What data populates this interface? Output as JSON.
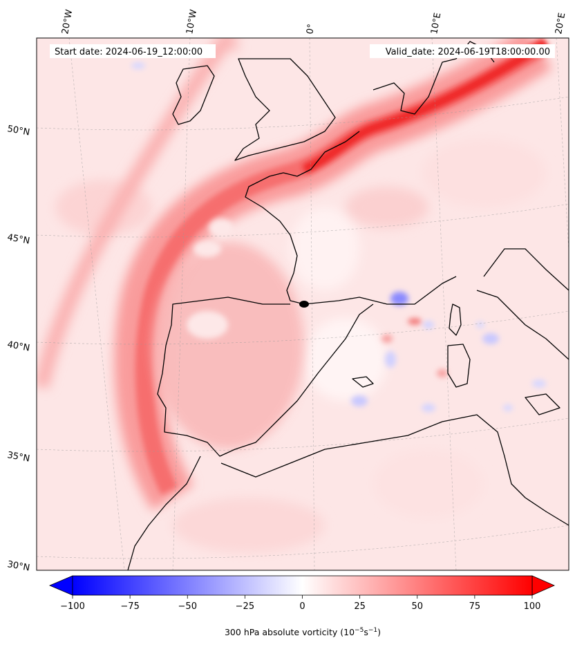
{
  "header": {
    "start_date": "Start date: 2024-06-19_12:00:00",
    "valid_date": "Valid_date: 2024-06-19T18:00:00.00"
  },
  "longitude_labels": [
    "20°W",
    "10°W",
    "0°",
    "10°E",
    "20°E"
  ],
  "latitude_labels": [
    "50°N",
    "45°N",
    "40°N",
    "35°N",
    "30°N"
  ],
  "colorbar": {
    "title_main": "300 hPa absolute vorticity (10",
    "title_exp1": "−5",
    "title_mid": "s",
    "title_exp2": "−1",
    "title_end": ")",
    "min": -100,
    "max": 100,
    "tick_labels": [
      "−100",
      "−75",
      "−50",
      "−25",
      "0",
      "25",
      "50",
      "75",
      "100"
    ],
    "colormap": "bwr",
    "neg_color": "#0000ff",
    "zero_color": "#ffffff",
    "pos_color": "#ff0000"
  },
  "chart_data": {
    "type": "heatmap",
    "variable": "300 hPa absolute vorticity",
    "units": "10^-5 s^-1",
    "value_range": [
      -100,
      100
    ],
    "background_value": 10,
    "features": [
      {
        "feature": "vorticity band (SW–NE over Iberia to Germany)",
        "peak_value": 100
      },
      {
        "feature": "secondary band west of Iberia",
        "peak_value": 25
      },
      {
        "feature": "scattered negative cells over western Mediterranean",
        "peak_value": -30
      }
    ],
    "lon_range": [
      -22,
      22
    ],
    "lat_range": [
      29,
      55
    ],
    "grid": true
  }
}
